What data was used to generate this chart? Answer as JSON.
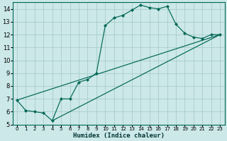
{
  "xlabel": "Humidex (Indice chaleur)",
  "bg_color": "#cce8e8",
  "grid_color": "#aacccc",
  "line_color": "#006655",
  "spine_color": "#006655",
  "xlim": [
    -0.5,
    23.5
  ],
  "ylim": [
    5,
    14.5
  ],
  "xticks": [
    0,
    1,
    2,
    3,
    4,
    5,
    6,
    7,
    8,
    9,
    10,
    11,
    12,
    13,
    14,
    15,
    16,
    17,
    18,
    19,
    20,
    21,
    22,
    23
  ],
  "yticks": [
    5,
    6,
    7,
    8,
    9,
    10,
    11,
    12,
    13,
    14
  ],
  "line1_x": [
    0,
    1,
    2,
    3,
    4,
    5,
    6,
    7,
    8,
    9,
    10,
    11,
    12,
    13,
    14,
    15,
    16,
    17,
    18,
    19,
    20,
    21,
    22,
    23
  ],
  "line1_y": [
    6.9,
    6.1,
    6.0,
    5.9,
    5.3,
    7.0,
    7.0,
    8.3,
    8.5,
    9.0,
    12.7,
    13.3,
    13.5,
    13.9,
    14.3,
    14.1,
    14.0,
    14.2,
    12.8,
    12.1,
    11.8,
    11.7,
    12.0,
    12.0
  ],
  "line2_x": [
    0,
    23
  ],
  "line2_y": [
    6.9,
    12.0
  ],
  "line3_x": [
    4,
    23
  ],
  "line3_y": [
    5.3,
    12.0
  ]
}
